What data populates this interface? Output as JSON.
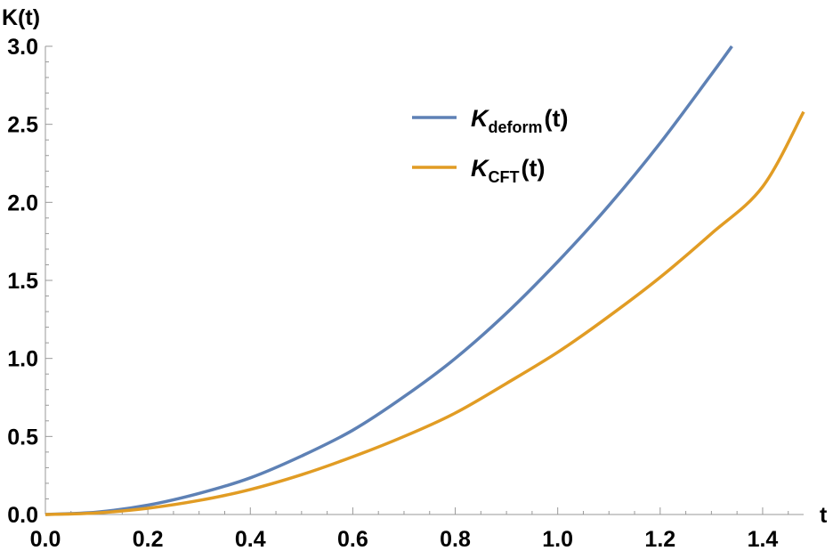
{
  "chart_data": {
    "type": "line",
    "title": "",
    "xlabel": "t",
    "ylabel": "K(t)",
    "xlim": [
      0,
      1.48
    ],
    "ylim": [
      0,
      3.0
    ],
    "x_ticks": [
      "0.0",
      "0.2",
      "0.4",
      "0.6",
      "0.8",
      "1.0",
      "1.2",
      "1.4"
    ],
    "y_ticks": [
      "0.0",
      "0.5",
      "1.0",
      "1.5",
      "2.0",
      "2.5",
      "3.0"
    ],
    "grid": false,
    "legend_position": "top-right",
    "series": [
      {
        "name": "K",
        "subscript": "deform",
        "suffix": "(t)",
        "color": "#5e81b5",
        "x": [
          0,
          0.1,
          0.2,
          0.3,
          0.4,
          0.5,
          0.6,
          0.7,
          0.8,
          0.9,
          1.0,
          1.1,
          1.2,
          1.3,
          1.34
        ],
        "y": [
          0,
          0.015,
          0.06,
          0.135,
          0.235,
          0.375,
          0.54,
          0.755,
          1.0,
          1.29,
          1.62,
          1.98,
          2.38,
          2.82,
          3.0
        ]
      },
      {
        "name": "K",
        "subscript": "CFT",
        "suffix": "(t)",
        "color": "#e19c24",
        "x": [
          0,
          0.1,
          0.2,
          0.3,
          0.4,
          0.5,
          0.6,
          0.7,
          0.8,
          0.9,
          1.0,
          1.1,
          1.2,
          1.3,
          1.4,
          1.48
        ],
        "y": [
          0,
          0.01,
          0.04,
          0.09,
          0.16,
          0.255,
          0.37,
          0.5,
          0.65,
          0.84,
          1.04,
          1.27,
          1.52,
          1.8,
          2.1,
          2.58
        ]
      }
    ]
  }
}
